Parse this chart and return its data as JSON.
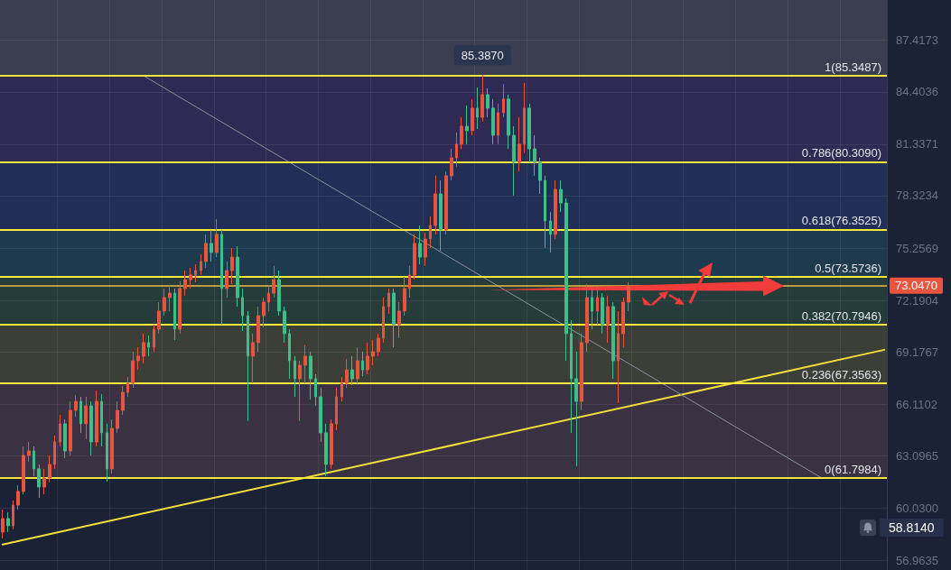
{
  "chart_data": {
    "type": "candlestick",
    "categories": [
      null,
      null,
      null,
      null,
      null,
      null,
      null,
      null,
      null,
      null,
      null,
      null,
      null,
      null,
      null,
      null,
      null,
      null,
      null,
      null,
      null,
      null,
      null,
      null,
      null,
      null,
      null,
      null,
      null,
      null,
      null,
      null,
      null,
      null,
      null,
      null,
      null,
      null,
      null,
      null,
      null,
      null,
      null,
      null,
      null,
      null,
      null,
      null,
      null,
      null,
      null,
      null,
      null,
      null,
      null,
      null,
      null,
      null,
      null,
      null,
      null,
      null,
      null,
      null,
      null,
      null,
      null,
      null,
      null,
      null,
      null,
      null,
      null,
      null,
      null,
      null,
      null,
      null,
      null,
      null,
      null,
      null,
      null,
      null,
      null,
      null,
      null,
      null,
      null,
      null,
      null,
      null,
      null,
      null,
      null,
      null,
      null,
      null,
      null,
      null,
      null,
      null,
      null,
      null,
      null,
      null,
      null,
      null,
      null,
      null,
      null,
      null,
      null,
      null,
      null,
      null,
      null,
      null,
      null,
      null,
      null,
      null,
      null,
      null,
      null,
      null,
      null,
      null,
      null,
      null,
      null,
      null,
      null,
      null,
      null,
      null,
      null,
      null,
      null,
      null,
      null,
      null,
      null,
      null,
      null,
      null,
      null,
      null,
      null,
      null,
      null,
      null,
      null,
      null,
      null,
      null,
      null,
      null,
      null,
      null,
      null,
      null,
      null,
      null,
      null,
      null,
      null,
      null,
      null,
      null
    ],
    "ohlc": [
      [
        58.63,
        59.95,
        58.26,
        59.42
      ],
      [
        59.42,
        59.79,
        58.63,
        59.0
      ],
      [
        59.0,
        60.48,
        58.79,
        60.21
      ],
      [
        60.21,
        61.37,
        59.95,
        61.01
      ],
      [
        61.01,
        63.65,
        60.85,
        63.12
      ],
      [
        63.12,
        63.91,
        62.75,
        63.38
      ],
      [
        63.38,
        63.65,
        61.9,
        62.33
      ],
      [
        62.33,
        62.59,
        60.64,
        61.27
      ],
      [
        61.27,
        62.33,
        60.85,
        61.8
      ],
      [
        61.8,
        63.12,
        61.54,
        62.59
      ],
      [
        62.59,
        64.28,
        62.33,
        63.91
      ],
      [
        63.91,
        65.49,
        63.65,
        64.97
      ],
      [
        64.97,
        65.23,
        62.96,
        63.38
      ],
      [
        63.38,
        66.28,
        63.12,
        65.76
      ],
      [
        65.76,
        66.66,
        65.39,
        66.28
      ],
      [
        66.28,
        66.55,
        64.44,
        64.97
      ],
      [
        64.97,
        66.55,
        64.07,
        66.02
      ],
      [
        66.02,
        66.28,
        63.12,
        63.91
      ],
      [
        63.91,
        66.92,
        63.65,
        66.28
      ],
      [
        66.28,
        66.71,
        63.65,
        64.44
      ],
      [
        64.44,
        64.97,
        61.59,
        62.33
      ],
      [
        62.33,
        65.23,
        62.06,
        64.7
      ],
      [
        64.7,
        66.28,
        64.44,
        65.76
      ],
      [
        65.76,
        67.18,
        65.49,
        66.81
      ],
      [
        66.81,
        67.71,
        66.55,
        67.34
      ],
      [
        67.34,
        69.19,
        67.08,
        68.66
      ],
      [
        68.66,
        69.45,
        68.13,
        68.93
      ],
      [
        68.93,
        70.25,
        68.5,
        69.72
      ],
      [
        69.72,
        70.14,
        68.93,
        69.45
      ],
      [
        69.45,
        70.77,
        69.19,
        70.51
      ],
      [
        70.51,
        72.09,
        70.25,
        71.57
      ],
      [
        71.57,
        72.89,
        71.3,
        72.36
      ],
      [
        72.36,
        73.05,
        71.57,
        72.62
      ],
      [
        72.62,
        72.89,
        69.88,
        70.51
      ],
      [
        70.51,
        73.31,
        70.25,
        72.89
      ],
      [
        72.89,
        73.94,
        72.47,
        73.41
      ],
      [
        73.41,
        74.1,
        72.89,
        73.68
      ],
      [
        73.68,
        74.31,
        73.26,
        73.94
      ],
      [
        73.94,
        74.89,
        73.68,
        74.47
      ],
      [
        74.47,
        76.06,
        74.1,
        75.53
      ],
      [
        75.53,
        76.32,
        74.47,
        75.0
      ],
      [
        75.0,
        76.95,
        74.73,
        76.06
      ],
      [
        76.06,
        76.32,
        70.77,
        72.89
      ],
      [
        72.89,
        74.47,
        72.36,
        73.94
      ],
      [
        73.94,
        75.26,
        73.15,
        74.73
      ],
      [
        74.73,
        75.37,
        71.83,
        72.36
      ],
      [
        72.36,
        72.89,
        70.41,
        71.3
      ],
      [
        71.3,
        71.57,
        65.13,
        68.93
      ],
      [
        68.93,
        70.25,
        67.34,
        69.72
      ],
      [
        69.72,
        71.83,
        69.19,
        71.3
      ],
      [
        71.3,
        72.36,
        70.62,
        72.09
      ],
      [
        72.09,
        73.05,
        71.57,
        72.62
      ],
      [
        72.62,
        74.21,
        72.36,
        73.41
      ],
      [
        73.41,
        73.94,
        71.3,
        71.57
      ],
      [
        71.57,
        71.83,
        69.72,
        70.25
      ],
      [
        70.25,
        70.51,
        67.61,
        68.66
      ],
      [
        68.66,
        68.93,
        66.55,
        67.61
      ],
      [
        67.61,
        68.66,
        65.13,
        68.4
      ],
      [
        68.4,
        69.56,
        67.34,
        68.93
      ],
      [
        68.93,
        69.19,
        66.39,
        67.61
      ],
      [
        67.61,
        67.87,
        66.02,
        66.55
      ],
      [
        66.55,
        67.08,
        63.91,
        64.44
      ],
      [
        64.44,
        64.97,
        61.9,
        62.59
      ],
      [
        62.59,
        65.23,
        62.33,
        64.97
      ],
      [
        64.97,
        67.08,
        64.6,
        66.55
      ],
      [
        66.55,
        67.71,
        66.28,
        67.34
      ],
      [
        67.34,
        68.77,
        67.08,
        68.13
      ],
      [
        68.13,
        68.93,
        67.24,
        67.61
      ],
      [
        67.61,
        69.45,
        67.34,
        68.66
      ],
      [
        68.66,
        69.19,
        67.76,
        68.13
      ],
      [
        68.13,
        69.72,
        67.87,
        68.93
      ],
      [
        68.93,
        69.88,
        68.4,
        69.19
      ],
      [
        69.19,
        70.25,
        68.93,
        69.98
      ],
      [
        69.98,
        72.36,
        69.72,
        71.83
      ],
      [
        71.83,
        72.89,
        71.41,
        72.62
      ],
      [
        72.62,
        72.89,
        69.45,
        70.77
      ],
      [
        70.77,
        72.09,
        69.98,
        71.57
      ],
      [
        71.57,
        73.57,
        71.3,
        72.89
      ],
      [
        72.89,
        74.21,
        72.36,
        73.68
      ],
      [
        73.68,
        76.06,
        73.41,
        75.53
      ],
      [
        75.53,
        76.58,
        74.31,
        74.73
      ],
      [
        74.73,
        76.16,
        74.21,
        75.79
      ],
      [
        75.79,
        77.11,
        75.26,
        76.58
      ],
      [
        76.58,
        79.49,
        76.06,
        78.43
      ],
      [
        78.43,
        79.22,
        75.1,
        76.32
      ],
      [
        76.32,
        79.75,
        76.06,
        79.49
      ],
      [
        79.49,
        81.07,
        79.22,
        80.54
      ],
      [
        80.54,
        82.02,
        80.02,
        81.34
      ],
      [
        81.34,
        82.92,
        81.07,
        82.39
      ],
      [
        82.39,
        83.61,
        81.34,
        82.13
      ],
      [
        82.13,
        83.98,
        81.86,
        83.45
      ],
      [
        83.45,
        84.66,
        82.23,
        82.92
      ],
      [
        82.92,
        85.387,
        82.66,
        84.24
      ],
      [
        84.24,
        84.61,
        82.92,
        83.45
      ],
      [
        83.45,
        83.98,
        81.34,
        81.86
      ],
      [
        81.86,
        83.71,
        81.34,
        83.18
      ],
      [
        83.18,
        84.87,
        82.92,
        83.98
      ],
      [
        83.98,
        84.24,
        81.07,
        81.86
      ],
      [
        81.86,
        82.39,
        78.33,
        80.28
      ],
      [
        80.28,
        82.92,
        79.75,
        81.34
      ],
      [
        81.34,
        84.93,
        80.81,
        83.45
      ],
      [
        83.45,
        83.71,
        80.28,
        81.07
      ],
      [
        81.07,
        81.86,
        79.49,
        80.28
      ],
      [
        80.28,
        80.54,
        78.43,
        79.22
      ],
      [
        79.22,
        79.49,
        75.26,
        76.85
      ],
      [
        76.85,
        77.37,
        75.0,
        76.06
      ],
      [
        76.06,
        79.22,
        75.79,
        78.69
      ],
      [
        78.69,
        79.22,
        77.37,
        77.9
      ],
      [
        77.9,
        78.17,
        68.66,
        70.25
      ],
      [
        70.25,
        71.04,
        64.44,
        67.61
      ],
      [
        67.61,
        69.19,
        62.48,
        66.28
      ],
      [
        66.28,
        70.25,
        65.76,
        69.72
      ],
      [
        69.72,
        73.15,
        69.19,
        72.36
      ],
      [
        72.36,
        72.89,
        70.51,
        71.57
      ],
      [
        71.57,
        72.99,
        70.77,
        72.36
      ],
      [
        72.36,
        72.62,
        70.25,
        70.77
      ],
      [
        70.77,
        72.47,
        69.72,
        71.83
      ],
      [
        71.83,
        72.09,
        67.61,
        68.66
      ],
      [
        68.66,
        71.57,
        66.18,
        70.25
      ],
      [
        70.25,
        72.36,
        69.45,
        72.09
      ],
      [
        72.09,
        73.26,
        71.57,
        73.047
      ],
      null,
      null,
      null,
      null,
      null,
      null,
      null,
      null,
      null,
      null,
      null,
      null,
      null,
      null,
      null,
      null,
      null,
      null,
      null,
      null,
      null,
      null,
      null,
      null,
      null,
      null,
      null,
      null,
      null,
      null,
      null,
      null,
      null,
      null,
      null,
      null,
      null,
      null,
      null,
      null,
      null,
      null,
      null,
      null,
      null,
      null,
      null,
      null,
      null
    ],
    "colors": [
      "#e8553f",
      "#3dbf8a",
      "#e8553f",
      "#e8553f",
      "#e8553f",
      "#e8553f",
      "#3dbf8a",
      "#3dbf8a",
      "#e8553f",
      "#e8553f",
      "#e8553f",
      "#e8553f",
      "#3dbf8a",
      "#e8553f",
      "#e8553f",
      "#3dbf8a",
      "#e8553f",
      "#3dbf8a",
      "#e8553f",
      "#3dbf8a",
      "#3dbf8a",
      "#e8553f",
      "#e8553f",
      "#e8553f",
      "#e8553f",
      "#e8553f",
      "#e8553f",
      "#e8553f",
      "#3dbf8a",
      "#e8553f",
      "#e8553f",
      "#e8553f",
      "#e8553f",
      "#3dbf8a",
      "#e8553f",
      "#e8553f",
      "#e8553f",
      "#e8553f",
      "#e8553f",
      "#e8553f",
      "#3dbf8a",
      "#e8553f",
      "#3dbf8a",
      "#e8553f",
      "#e8553f",
      "#3dbf8a",
      "#3dbf8a",
      "#3dbf8a",
      "#e8553f",
      "#e8553f",
      "#e8553f",
      "#e8553f",
      "#e8553f",
      "#3dbf8a",
      "#3dbf8a",
      "#3dbf8a",
      "#3dbf8a",
      "#e8553f",
      "#e8553f",
      "#3dbf8a",
      "#3dbf8a",
      "#3dbf8a",
      "#3dbf8a",
      "#e8553f",
      "#e8553f",
      "#e8553f",
      "#e8553f",
      "#3dbf8a",
      "#e8553f",
      "#3dbf8a",
      "#e8553f",
      "#e8553f",
      "#e8553f",
      "#e8553f",
      "#e8553f",
      "#3dbf8a",
      "#e8553f",
      "#e8553f",
      "#e8553f",
      "#e8553f",
      "#3dbf8a",
      "#e8553f",
      "#e8553f",
      "#e8553f",
      "#3dbf8a",
      "#e8553f",
      "#e8553f",
      "#e8553f",
      "#e8553f",
      "#3dbf8a",
      "#e8553f",
      "#3dbf8a",
      "#e8553f",
      "#3dbf8a",
      "#3dbf8a",
      "#e8553f",
      "#e8553f",
      "#3dbf8a",
      "#3dbf8a",
      "#e8553f",
      "#e8553f",
      "#3dbf8a",
      "#3dbf8a",
      "#3dbf8a",
      "#3dbf8a",
      "#3dbf8a",
      "#e8553f",
      "#3dbf8a",
      "#3dbf8a",
      "#3dbf8a",
      "#3dbf8a",
      "#e8553f",
      "#e8553f",
      "#3dbf8a",
      "#e8553f",
      "#3dbf8a",
      "#e8553f",
      "#3dbf8a",
      "#e8553f",
      "#e8553f",
      "#e8553f",
      null,
      null,
      null,
      null,
      null,
      null,
      null,
      null,
      null,
      null,
      null,
      null,
      null,
      null,
      null,
      null,
      null,
      null,
      null,
      null,
      null,
      null,
      null,
      null,
      null,
      null,
      null,
      null,
      null,
      null,
      null,
      null,
      null,
      null,
      null,
      null,
      null,
      null,
      null,
      null,
      null,
      null,
      null,
      null,
      null,
      null,
      null,
      null,
      null
    ],
    "series": [
      {
        "type": "line",
        "color": "#f2df3a",
        "values": [
          57.9,
          null,
          null,
          null,
          null,
          null,
          null,
          null,
          null,
          null,
          null,
          null,
          null,
          null,
          null,
          null,
          null,
          null,
          null,
          null,
          null,
          null,
          null,
          null,
          null,
          null,
          null,
          null,
          null,
          null,
          null,
          null,
          null,
          null,
          null,
          null,
          null,
          null,
          null,
          null,
          null,
          null,
          null,
          null,
          null,
          null,
          null,
          null,
          null,
          null,
          null,
          null,
          null,
          null,
          null,
          null,
          null,
          null,
          null,
          null,
          null,
          null,
          null,
          null,
          null,
          null,
          null,
          null,
          null,
          null,
          null,
          null,
          null,
          null,
          null,
          null,
          null,
          null,
          null,
          null,
          null,
          null,
          null,
          null,
          null,
          null,
          null,
          null,
          null,
          null,
          null,
          null,
          null,
          null,
          null,
          null,
          null,
          null,
          null,
          null,
          null,
          null,
          null,
          null,
          null,
          null,
          null,
          null,
          null,
          null,
          null,
          null,
          null,
          null,
          null,
          null,
          null,
          null,
          null,
          null,
          null,
          null,
          null,
          null,
          null,
          null,
          null,
          null,
          null,
          null,
          null,
          null,
          null,
          null,
          null,
          null,
          null,
          null,
          null,
          null,
          null,
          null,
          null,
          null,
          null,
          null,
          null,
          null,
          null,
          null,
          null,
          null,
          null,
          null,
          null,
          null,
          null,
          null,
          null,
          null,
          null,
          null,
          null,
          null,
          null,
          null,
          null,
          null,
          null,
          69.3
        ]
      },
      {
        "type": "line",
        "color": "#8c919e",
        "values": [
          null,
          null,
          null,
          null,
          null,
          null,
          null,
          null,
          null,
          null,
          null,
          null,
          null,
          null,
          null,
          null,
          null,
          null,
          null,
          null,
          null,
          null,
          null,
          null,
          null,
          null,
          null,
          85.35,
          null,
          null,
          null,
          null,
          null,
          null,
          null,
          null,
          null,
          null,
          null,
          null,
          null,
          null,
          null,
          null,
          null,
          null,
          null,
          null,
          null,
          null,
          null,
          null,
          null,
          null,
          null,
          null,
          null,
          null,
          null,
          null,
          null,
          null,
          null,
          null,
          null,
          null,
          null,
          null,
          null,
          null,
          null,
          null,
          null,
          null,
          null,
          null,
          null,
          null,
          null,
          null,
          null,
          null,
          null,
          null,
          null,
          null,
          null,
          null,
          null,
          null,
          null,
          null,
          null,
          null,
          null,
          null,
          null,
          null,
          null,
          null,
          null,
          null,
          null,
          null,
          null,
          null,
          null,
          null,
          null,
          null,
          null,
          null,
          null,
          null,
          null,
          null,
          null,
          null,
          null,
          null,
          null,
          null,
          null,
          null,
          null,
          null,
          null,
          null,
          null,
          null,
          null,
          null,
          null,
          null,
          null,
          null,
          null,
          null,
          null,
          null,
          null,
          null,
          null,
          null,
          null,
          null,
          null,
          null,
          null,
          null,
          null,
          null,
          null,
          null,
          null,
          null,
          null,
          61.8,
          null,
          null,
          null,
          null,
          null,
          null,
          null,
          null,
          null,
          null,
          null,
          null
        ]
      }
    ],
    "ylim": [
      56.41,
      89.78
    ],
    "yticks": [
      56.9635,
      {
        "value": 60.03,
        "label": "60.0300"
      },
      63.0965,
      66.1102,
      69.1767,
      72.1904,
      75.2569,
      78.3234,
      81.3371,
      84.4036,
      87.4173
    ],
    "bands": [
      {
        "axis": "y",
        "from": 61.7984,
        "to": 67.3563,
        "color": "#3a3142"
      },
      {
        "axis": "y",
        "from": 67.3563,
        "to": 70.7946,
        "color": "#3b3f38"
      },
      {
        "axis": "y",
        "from": 70.7946,
        "to": 73.5736,
        "color": "#253c3a"
      },
      {
        "axis": "y",
        "from": 73.5736,
        "to": 76.3525,
        "color": "#1e3a4e"
      },
      {
        "axis": "y",
        "from": 76.3525,
        "to": 80.309,
        "color": "#212f56"
      },
      {
        "axis": "y",
        "from": 80.309,
        "to": 85.3487,
        "color": "#2f2a53"
      },
      {
        "axis": "y",
        "from": 85.3487,
        "to": 89.78,
        "color": "#3a3e50"
      }
    ],
    "ref_lines": [
      {
        "axis": "y",
        "value": 85.3487,
        "label": "1(85.3487)",
        "color": "#fbe63c"
      },
      {
        "axis": "y",
        "value": 80.309,
        "label": "0.786(80.3090)",
        "color": "#fbe63c"
      },
      {
        "axis": "y",
        "value": 76.3525,
        "label": "0.618(76.3525)",
        "color": "#fbe63c"
      },
      {
        "axis": "y",
        "value": 73.5736,
        "label": "0.5(73.5736)",
        "color": "#fbe63c"
      },
      {
        "axis": "y",
        "value": 70.7946,
        "label": "0.382(70.7946)",
        "color": "#fbe63c"
      },
      {
        "axis": "y",
        "value": 67.3563,
        "label": "0.236(67.3563)",
        "color": "#fbe63c"
      },
      {
        "axis": "y",
        "value": 61.7984,
        "label": "0(61.7984)",
        "color": "#fbe63c"
      },
      {
        "axis": "y",
        "value": 73.047,
        "label": "73.0470",
        "color": "#f0b940"
      }
    ],
    "annotations": [
      {
        "text": "85.3870",
        "y": 85.387
      },
      "58.8140"
    ],
    "grid": true,
    "tick_labels": "y"
  }
}
